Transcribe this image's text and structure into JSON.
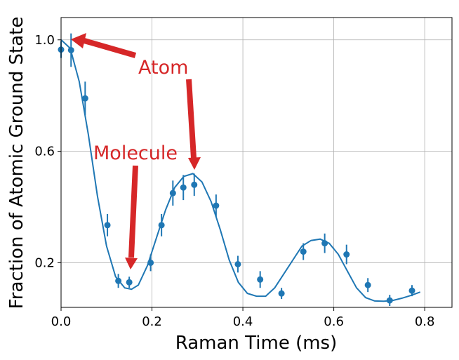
{
  "chart_data": {
    "type": "scatter",
    "xlabel": "Raman Time (ms)",
    "ylabel": "Fraction of Atomic Ground State",
    "xlim": [
      0,
      0.86
    ],
    "ylim": [
      0.04,
      1.08
    ],
    "xticks": [
      0.0,
      0.2,
      0.4,
      0.6,
      0.8
    ],
    "xtick_labels": [
      "0.0",
      "0.2",
      "0.4",
      "0.6",
      "0.8"
    ],
    "yticks": [
      0.2,
      0.6,
      1.0
    ],
    "ytick_labels": [
      "0.2",
      "0.6",
      "1.0"
    ],
    "grid": true,
    "series": [
      {
        "kind": "points_with_error_bars",
        "color": "#1f77b4",
        "x": [
          0.0,
          0.022,
          0.053,
          0.102,
          0.126,
          0.15,
          0.197,
          0.221,
          0.246,
          0.269,
          0.293,
          0.341,
          0.389,
          0.438,
          0.485,
          0.533,
          0.58,
          0.628,
          0.675,
          0.723,
          0.772
        ],
        "y": [
          0.965,
          0.963,
          0.79,
          0.335,
          0.135,
          0.13,
          0.2,
          0.335,
          0.45,
          0.47,
          0.48,
          0.405,
          0.195,
          0.14,
          0.09,
          0.24,
          0.27,
          0.23,
          0.12,
          0.065,
          0.1
        ],
        "yerr": [
          0.03,
          0.06,
          0.06,
          0.04,
          0.025,
          0.02,
          0.03,
          0.04,
          0.045,
          0.045,
          0.04,
          0.04,
          0.03,
          0.03,
          0.02,
          0.03,
          0.035,
          0.035,
          0.025,
          0.02,
          0.02
        ]
      },
      {
        "kind": "fit_curve",
        "color": "#1f77b4",
        "x": [
          0.0,
          0.02,
          0.04,
          0.06,
          0.08,
          0.1,
          0.12,
          0.14,
          0.155,
          0.17,
          0.19,
          0.21,
          0.23,
          0.25,
          0.27,
          0.29,
          0.31,
          0.33,
          0.35,
          0.37,
          0.39,
          0.41,
          0.43,
          0.45,
          0.47,
          0.49,
          0.51,
          0.53,
          0.55,
          0.57,
          0.59,
          0.61,
          0.63,
          0.65,
          0.67,
          0.69,
          0.71,
          0.73,
          0.75,
          0.77,
          0.79
        ],
        "y": [
          1.0,
          0.97,
          0.85,
          0.66,
          0.44,
          0.26,
          0.15,
          0.11,
          0.105,
          0.12,
          0.19,
          0.29,
          0.39,
          0.47,
          0.51,
          0.52,
          0.49,
          0.42,
          0.32,
          0.21,
          0.13,
          0.09,
          0.08,
          0.08,
          0.11,
          0.16,
          0.21,
          0.26,
          0.28,
          0.285,
          0.27,
          0.23,
          0.17,
          0.11,
          0.075,
          0.063,
          0.062,
          0.065,
          0.073,
          0.083,
          0.095
        ]
      }
    ],
    "annotations": [
      {
        "text": "Atom",
        "color": "#d62728"
      },
      {
        "text": "Molecule",
        "color": "#d62728"
      }
    ]
  }
}
